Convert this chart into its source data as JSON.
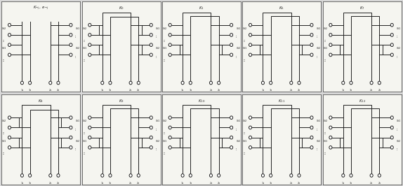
{
  "fig_width": 5.74,
  "fig_height": 2.66,
  "dpi": 100,
  "bg_color": "#d8d8d8",
  "cell_bg": "#f5f5f0",
  "line_color": "#222222",
  "grid_rows": 2,
  "grid_cols": 5,
  "top_titles": [
    "K_{-j},\\ e_{-j}",
    "K_0",
    "K_1",
    "K_6",
    "K_7"
  ],
  "bot_titles": [
    "K_8",
    "K_9",
    "K_{10}",
    "K_{11}",
    "K_{12}"
  ],
  "panel_types_top": [
    0,
    1,
    2,
    3,
    4
  ],
  "panel_types_bot": [
    5,
    6,
    7,
    8,
    9
  ]
}
